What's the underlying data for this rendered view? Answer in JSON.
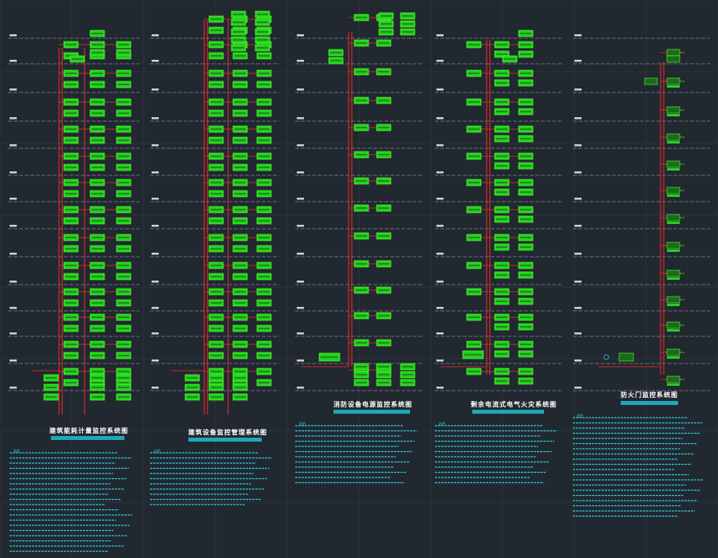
{
  "panels": [
    {
      "title": "建筑能耗计量监控系统图",
      "subtitle": "",
      "notes_heading": "说明",
      "notes": ""
    },
    {
      "title": "建筑设备监控管理系统图",
      "subtitle": "",
      "notes_heading": "说明",
      "notes": ""
    },
    {
      "title": "消防设备电源监控系统图",
      "subtitle": "",
      "notes_heading": "说明",
      "notes": ""
    },
    {
      "title": "剩余电流式电气火灾系统图",
      "subtitle": "",
      "notes_heading": "说明",
      "notes": ""
    },
    {
      "title": "防火门监控系统图",
      "subtitle": "",
      "notes_heading": "说明",
      "notes": ""
    }
  ],
  "module_labels": {
    "panel5": "FHXB",
    "panel5_base": "FHJK"
  },
  "colors": {
    "background": "#212830",
    "riser": "#ff2a2a",
    "module_fill": "#22d11f",
    "module_border": "#66ff33",
    "floor_line": "#aab4be",
    "note_text": "#2ec6d6",
    "title_text": "#ffffff"
  }
}
